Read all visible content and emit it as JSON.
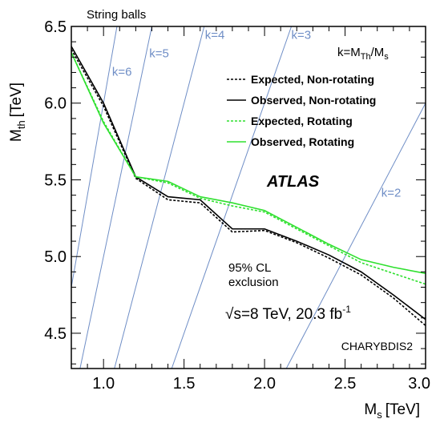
{
  "chart_data": {
    "type": "line",
    "title": "String balls",
    "xlabel": "M",
    "xlabel_sub": "s",
    "xlabel_unit": "[TeV]",
    "ylabel": "M",
    "ylabel_sub": "th",
    "ylabel_unit": "[TeV]",
    "xlim": [
      0.8,
      3.0
    ],
    "ylim": [
      4.27,
      6.5
    ],
    "xticks": [
      "1.0",
      "1.5",
      "2.0",
      "2.5",
      "3.0"
    ],
    "xtick_values": [
      1.0,
      1.5,
      2.0,
      2.5,
      3.0
    ],
    "yticks": [
      "4.5",
      "5.0",
      "5.5",
      "6.0",
      "6.5"
    ],
    "ytick_values": [
      4.5,
      5.0,
      5.5,
      6.0,
      6.5
    ],
    "k_formula": "k=M",
    "k_formula_sub1": "Th",
    "k_formula_mid": "/M",
    "k_formula_sub2": "s",
    "k_lines": [
      {
        "label": "k=2",
        "k": 2
      },
      {
        "label": "k=3",
        "k": 3
      },
      {
        "label": "k=4",
        "k": 4
      },
      {
        "label": "k=5",
        "k": 5
      },
      {
        "label": "k=6",
        "k": 6
      }
    ],
    "series": [
      {
        "name": "Expected, Non-rotating",
        "color": "#000000",
        "dash": true,
        "x": [
          0.8,
          1.0,
          1.2,
          1.4,
          1.6,
          1.8,
          2.0,
          2.2,
          2.4,
          2.6,
          2.8,
          3.0
        ],
        "y": [
          6.35,
          5.98,
          5.51,
          5.37,
          5.35,
          5.16,
          5.17,
          5.09,
          4.99,
          4.88,
          4.73,
          4.55
        ]
      },
      {
        "name": "Observed, Non-rotating",
        "color": "#000000",
        "dash": false,
        "x": [
          0.8,
          1.0,
          1.2,
          1.4,
          1.6,
          1.8,
          2.0,
          2.2,
          2.4,
          2.6,
          2.8,
          3.0
        ],
        "y": [
          6.37,
          6.0,
          5.52,
          5.39,
          5.37,
          5.18,
          5.18,
          5.1,
          5.01,
          4.9,
          4.75,
          4.59
        ]
      },
      {
        "name": "Expected, Rotating",
        "color": "#2ee02e",
        "dash": true,
        "x": [
          0.8,
          1.0,
          1.2,
          1.4,
          1.6,
          1.8,
          2.0,
          2.2,
          2.4,
          2.6,
          2.8,
          3.0
        ],
        "y": [
          6.33,
          5.88,
          5.52,
          5.48,
          5.38,
          5.33,
          5.29,
          5.18,
          5.07,
          4.96,
          4.89,
          4.82
        ]
      },
      {
        "name": "Observed, Rotating",
        "color": "#2ee02e",
        "dash": false,
        "x": [
          0.8,
          1.0,
          1.2,
          1.4,
          1.6,
          1.8,
          2.0,
          2.2,
          2.4,
          2.6,
          2.8,
          3.0
        ],
        "y": [
          6.33,
          5.87,
          5.52,
          5.49,
          5.39,
          5.35,
          5.3,
          5.19,
          5.08,
          4.98,
          4.93,
          4.89
        ]
      }
    ],
    "annotations": {
      "atlas": "ATLAS",
      "cl_line1": "95% CL",
      "cl_line2": "exclusion",
      "energy_sqrt": "√",
      "energy_s": "s=8 TeV, 20.3 fb",
      "energy_sup": "-1",
      "generator": "CHARYBDIS2"
    },
    "legend_position": "top-right",
    "grid": false
  }
}
